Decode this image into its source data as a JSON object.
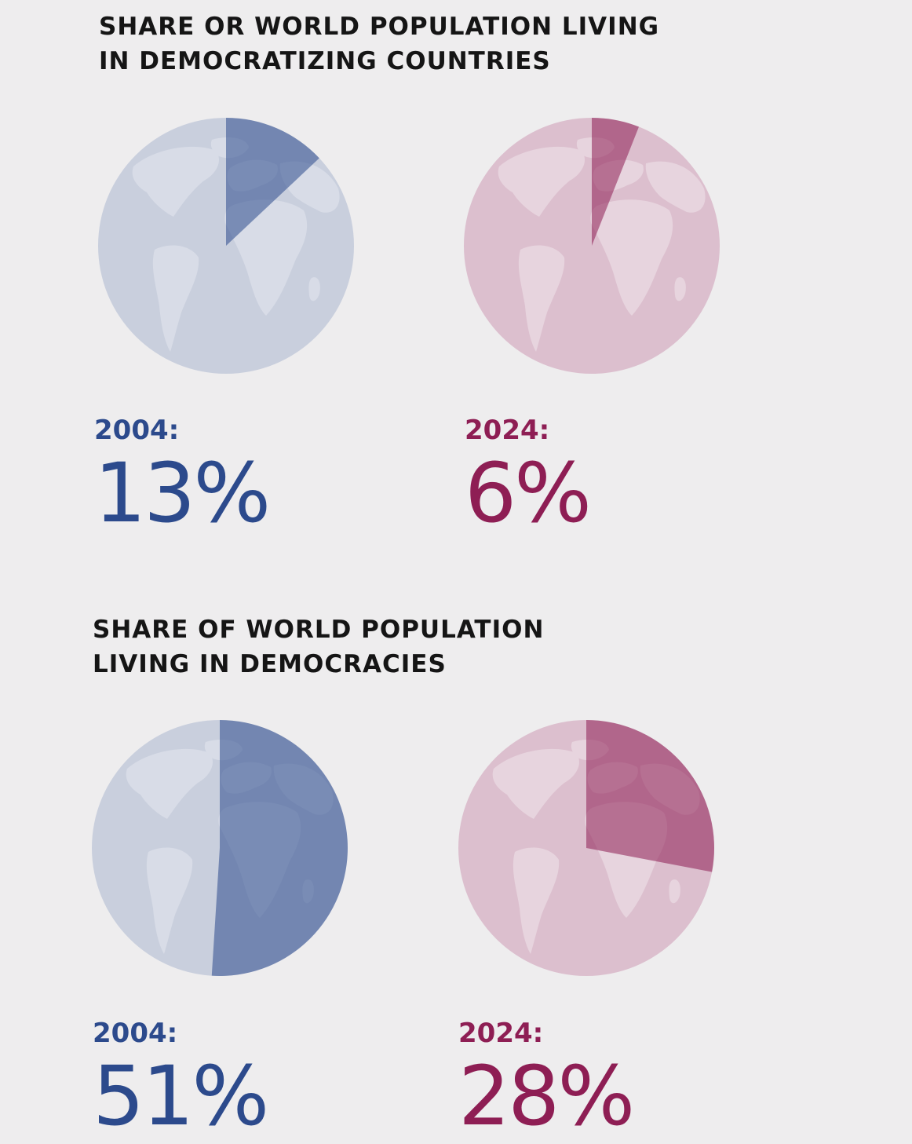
{
  "colors": {
    "background": "#eeedee",
    "blue_fill": "#2c4a8c",
    "blue_globe": "#c9cfdd",
    "blue_land": "#d8dce7",
    "red_fill": "#8e1e54",
    "red_globe": "#dcbfce",
    "red_land": "#e7d4de"
  },
  "sections": [
    {
      "title_lines": [
        "SHARE OR WORLD POPULATION LIVING",
        "IN DEMOCRATIZING COUNTRIES"
      ],
      "stats": [
        {
          "year_label": "2004:",
          "value_label": "13%"
        },
        {
          "year_label": "2024:",
          "value_label": "6%"
        }
      ]
    },
    {
      "title_lines": [
        "SHARE OF WORLD POPULATION",
        "LIVING IN DEMOCRACIES"
      ],
      "stats": [
        {
          "year_label": "2004:",
          "value_label": "51%"
        },
        {
          "year_label": "2024:",
          "value_label": "28%"
        }
      ]
    }
  ],
  "chart_data": [
    {
      "type": "pie",
      "title": "SHARE OR WORLD POPULATION LIVING IN DEMOCRATIZING COUNTRIES",
      "series": [
        {
          "name": "2004:",
          "values": [
            13,
            87
          ],
          "color": "#2c4a8c"
        },
        {
          "name": "2024:",
          "values": [
            6,
            94
          ],
          "color": "#8e1e54"
        }
      ]
    },
    {
      "type": "pie",
      "title": "SHARE OF WORLD POPULATION LIVING IN DEMOCRACIES",
      "series": [
        {
          "name": "2004:",
          "values": [
            51,
            49
          ],
          "color": "#2c4a8c"
        },
        {
          "name": "2024:",
          "values": [
            28,
            72
          ],
          "color": "#8e1e54"
        }
      ]
    }
  ]
}
